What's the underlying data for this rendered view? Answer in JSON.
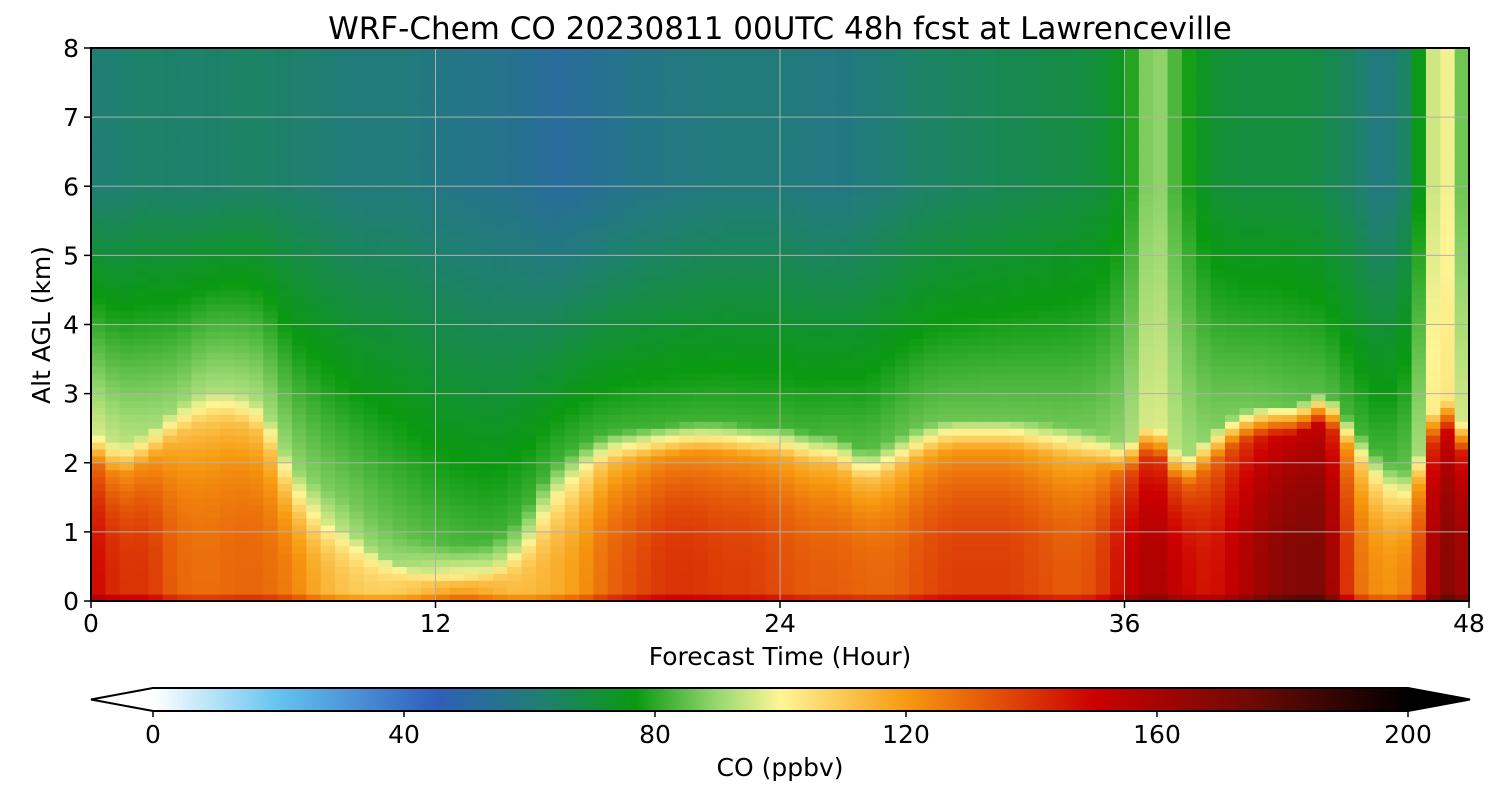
{
  "chart_data": {
    "type": "heatmap",
    "title": "WRF-Chem CO  20230811 00UTC 48h fcst at Lawrenceville",
    "xlabel": "Forecast Time (Hour)",
    "ylabel": "Alt AGL (km)",
    "xlim": [
      0,
      48
    ],
    "ylim": [
      0,
      8
    ],
    "x_ticks": [
      0,
      12,
      24,
      36,
      48
    ],
    "y_ticks": [
      0,
      1,
      2,
      3,
      4,
      5,
      6,
      7,
      8
    ],
    "grid": true,
    "colorbar": {
      "label": "CO  (ppbv)",
      "range": [
        0,
        200
      ],
      "ticks": [
        0,
        40,
        80,
        120,
        160,
        200
      ],
      "extend": "both",
      "orientation": "horizontal",
      "placement": "bottom",
      "colormap": [
        {
          "value": 0,
          "color": "#ffffff"
        },
        {
          "value": 20,
          "color": "#64c3f0"
        },
        {
          "value": 45,
          "color": "#2f5fba"
        },
        {
          "value": 62,
          "color": "#1f7f72"
        },
        {
          "value": 77,
          "color": "#0a9a10"
        },
        {
          "value": 90,
          "color": "#98d870"
        },
        {
          "value": 100,
          "color": "#fff596"
        },
        {
          "value": 120,
          "color": "#f79a10"
        },
        {
          "value": 150,
          "color": "#cc0000"
        },
        {
          "value": 175,
          "color": "#6e0a05"
        },
        {
          "value": 200,
          "color": "#000000"
        }
      ]
    },
    "x_hours": [
      0,
      1,
      2,
      3,
      4,
      5,
      6,
      7,
      8,
      9,
      10,
      11,
      12,
      13,
      14,
      15,
      16,
      17,
      18,
      19,
      20,
      21,
      22,
      23,
      24,
      25,
      26,
      27,
      28,
      29,
      30,
      31,
      32,
      33,
      34,
      35,
      36,
      37,
      38,
      39,
      40,
      41,
      42,
      43,
      44,
      45,
      46,
      47,
      48
    ],
    "profiles": {
      "altitudes_km": [
        0,
        0.1,
        0.3,
        0.6,
        1.0,
        1.5,
        1.8,
        2.0,
        2.2,
        2.4,
        2.6,
        3.0,
        3.5,
        4.0,
        4.5,
        5.0,
        6.0,
        7.0,
        8.0
      ],
      "boundary_layer_top_km": [
        2.0,
        1.8,
        2.0,
        2.4,
        2.6,
        2.6,
        2.4,
        1.5,
        1.2,
        1.0,
        0.7,
        0.5,
        0.4,
        0.35,
        0.45,
        0.8,
        1.5,
        1.8,
        2.0,
        2.05,
        2.1,
        2.15,
        2.15,
        2.1,
        2.1,
        2.0,
        1.95,
        1.7,
        1.9,
        2.1,
        2.2,
        2.2,
        2.2,
        2.15,
        2.1,
        2.0,
        1.8,
        2.2,
        1.6,
        2.0,
        2.3,
        2.4,
        2.4,
        2.6,
        2.1,
        1.6,
        1.4,
        2.6,
        2.0
      ],
      "boundary_layer_peak_ppbv": [
        150,
        140,
        140,
        130,
        128,
        130,
        130,
        125,
        115,
        110,
        108,
        110,
        115,
        120,
        115,
        112,
        115,
        120,
        130,
        135,
        140,
        140,
        138,
        138,
        135,
        132,
        132,
        130,
        130,
        135,
        138,
        138,
        138,
        135,
        132,
        135,
        150,
        160,
        150,
        145,
        155,
        165,
        170,
        170,
        130,
        120,
        125,
        170,
        160
      ],
      "free_troposphere_ppbv": [
        85,
        82,
        80,
        78,
        80,
        80,
        80,
        78,
        76,
        75,
        74,
        73,
        72,
        71,
        70,
        70,
        70,
        70,
        70,
        70,
        70,
        70,
        70,
        70,
        70,
        70,
        71,
        72,
        73,
        74,
        74,
        74,
        74,
        74,
        74,
        75,
        78,
        86,
        80,
        76,
        75,
        74,
        73,
        72,
        70,
        70,
        74,
        95,
        80
      ],
      "upper_level_ppbv": [
        62,
        62,
        64,
        63,
        63,
        64,
        64,
        63,
        62,
        60,
        60,
        60,
        58,
        57,
        56,
        55,
        52,
        53,
        55,
        57,
        58,
        59,
        60,
        60,
        60,
        59,
        58,
        60,
        62,
        64,
        65,
        66,
        67,
        68,
        69,
        70,
        75,
        92,
        80,
        72,
        70,
        70,
        70,
        68,
        64,
        58,
        66,
        105,
        80
      ]
    }
  }
}
